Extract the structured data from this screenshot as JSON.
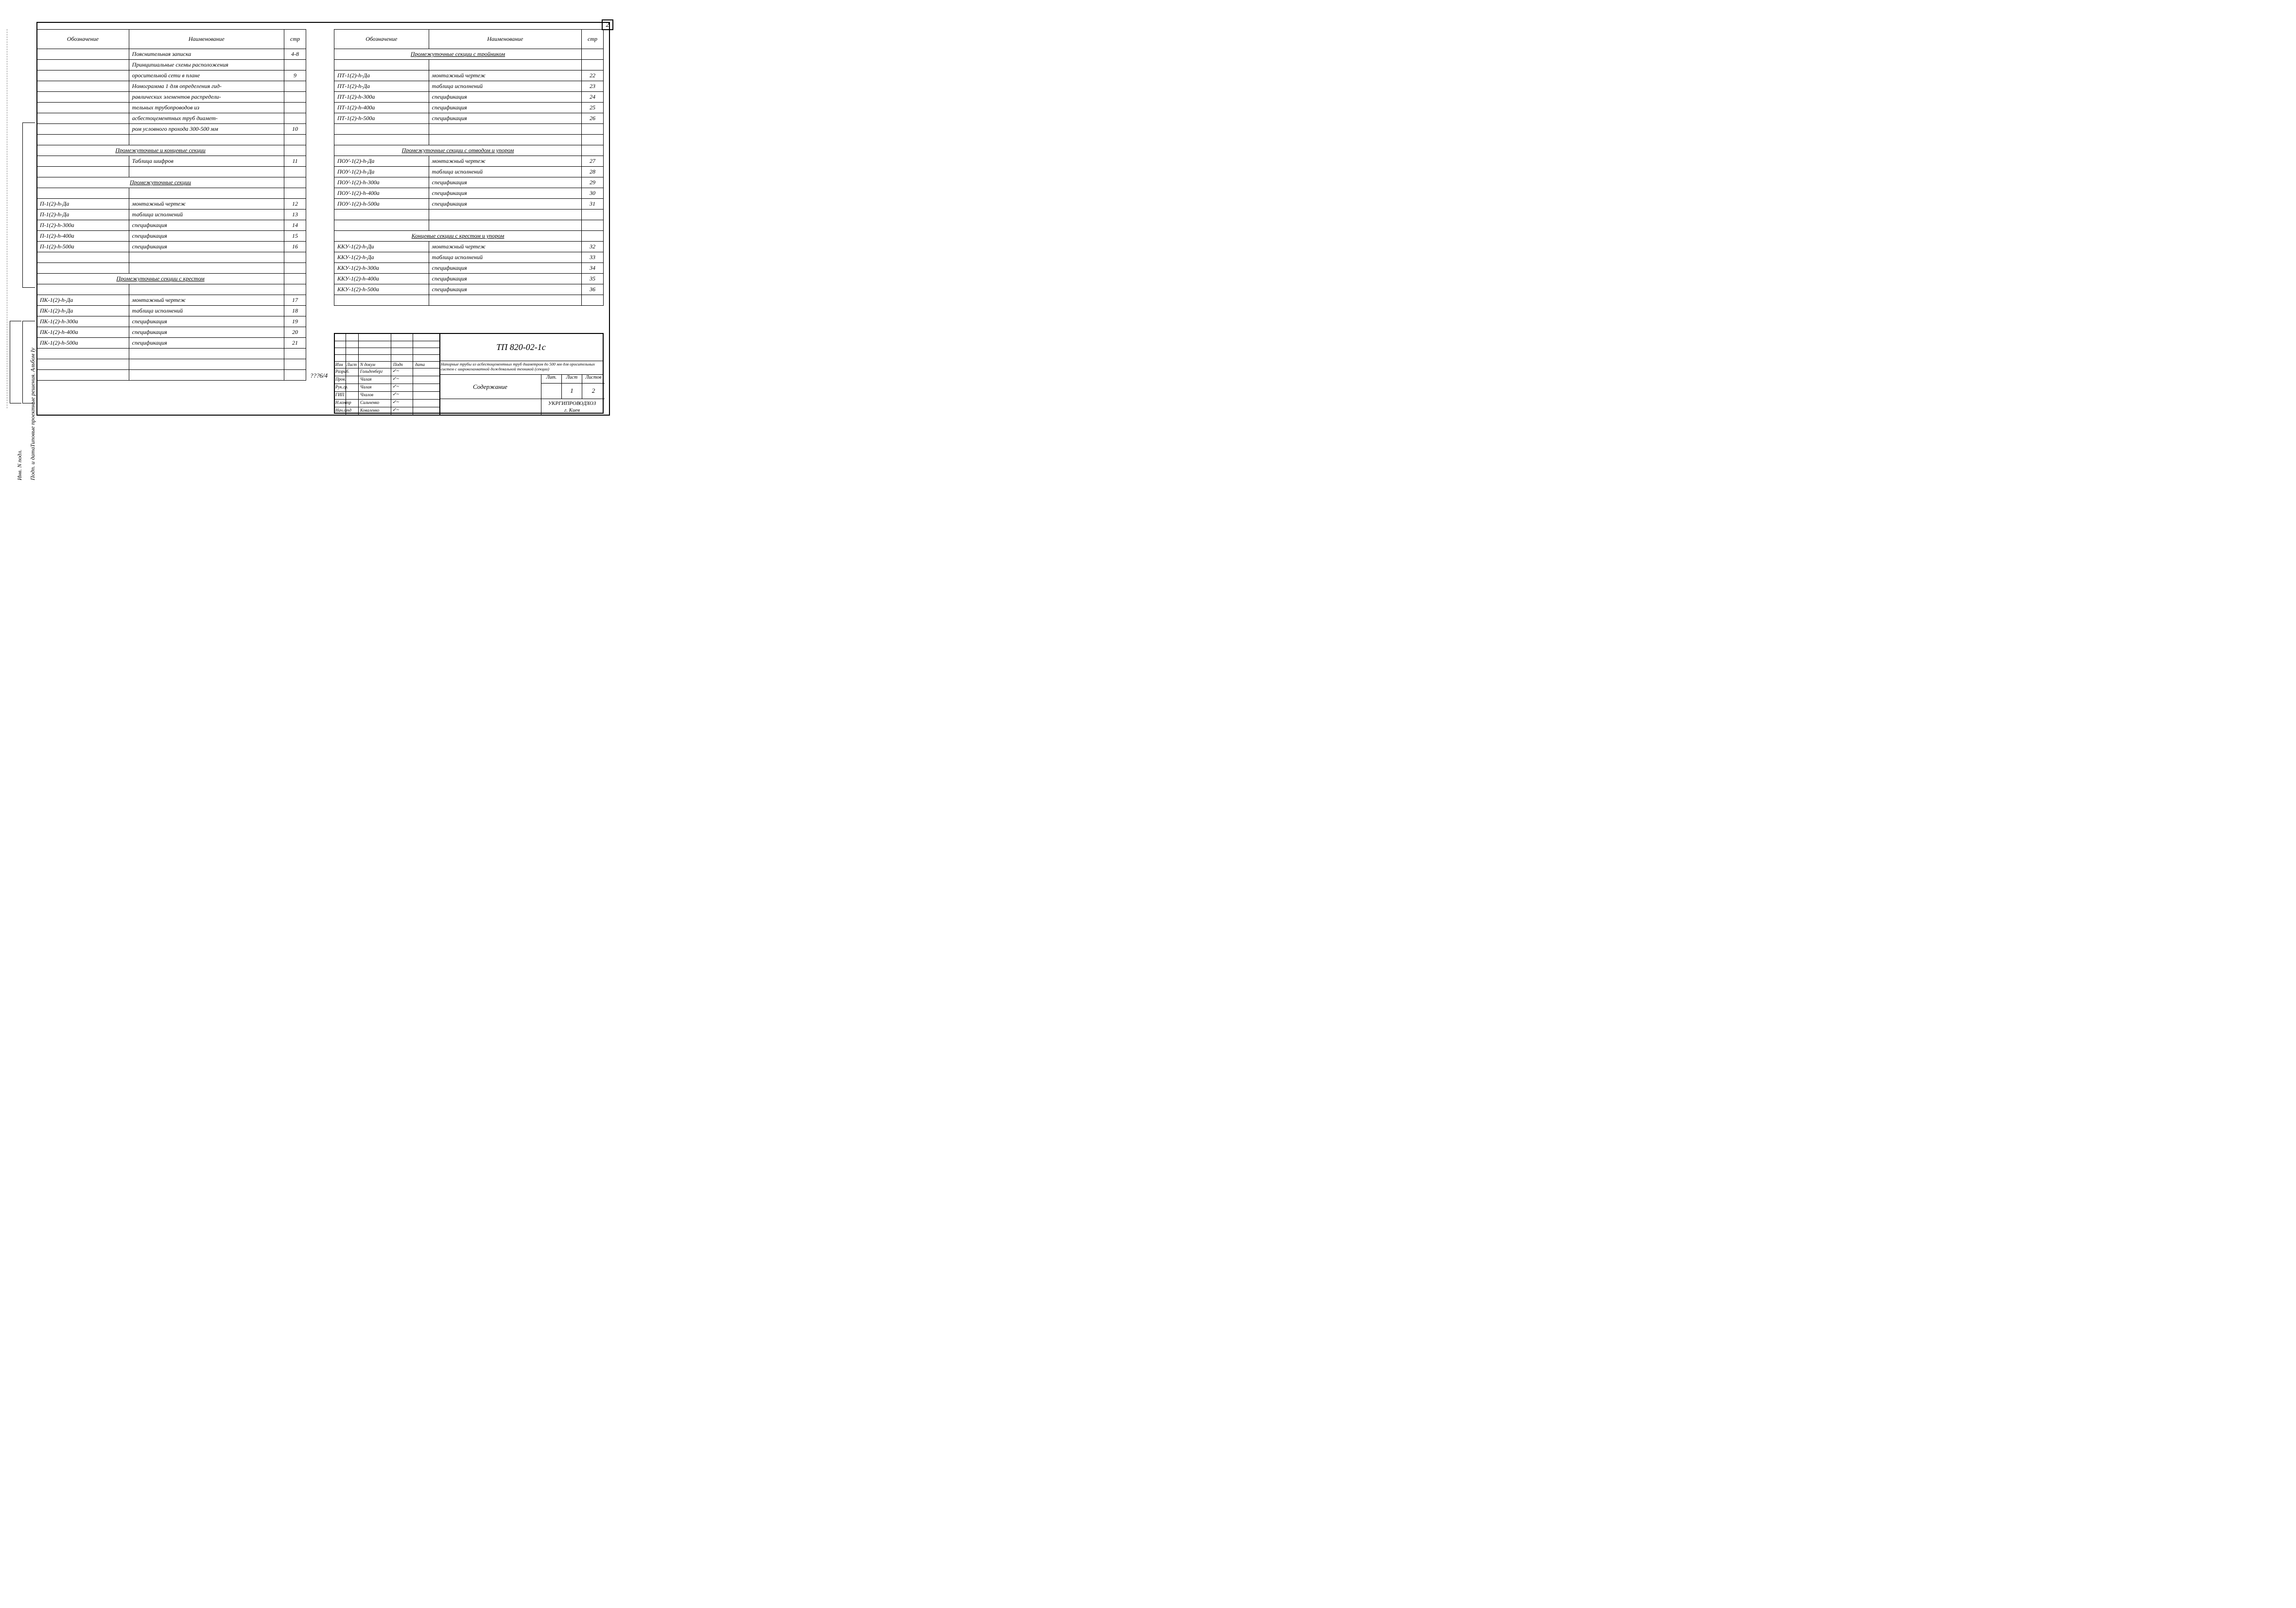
{
  "page_number_top": "2",
  "center_code": "???6/4",
  "vertical_labels": {
    "text1": "Типовые проектные решения. Альбом Iу",
    "text2": "Инв. N подл.",
    "text3": "Подп. и дата"
  },
  "headers": {
    "col1": "Обозначение",
    "col2": "Наименование",
    "col3": "стр"
  },
  "left_rows": [
    {
      "c1": "",
      "c2": "Пояснительная записка",
      "c3": "4-8"
    },
    {
      "c1": "",
      "c2": "Принципиальные схемы расположения",
      "c3": ""
    },
    {
      "c1": "",
      "c2": "оросительной сети в плане",
      "c3": "9"
    },
    {
      "c1": "",
      "c2": "Номограмма 1 для определения гид-",
      "c3": ""
    },
    {
      "c1": "",
      "c2": "равлических элементов распредели-",
      "c3": ""
    },
    {
      "c1": "",
      "c2": "тельных трубопроводов из",
      "c3": ""
    },
    {
      "c1": "",
      "c2": "асбестоцементных труб диамет-",
      "c3": ""
    },
    {
      "c1": "",
      "c2": "ром условного прохода 300-500 мм",
      "c3": "10"
    },
    {
      "c1": "",
      "c2": "",
      "c3": ""
    },
    {
      "section": true,
      "label": "Промежуточные и концевые секции"
    },
    {
      "c1": "",
      "c2": "Таблица шифров",
      "c3": "11"
    },
    {
      "c1": "",
      "c2": "",
      "c3": ""
    },
    {
      "section": true,
      "label": "Промежуточные секции"
    },
    {
      "c1": "",
      "c2": "",
      "c3": ""
    },
    {
      "c1": "П-1(2)-h-Да",
      "c2": "монтажный чертеж",
      "c3": "12"
    },
    {
      "c1": "П-1(2)-h-Да",
      "c2": "таблица исполнений",
      "c3": "13"
    },
    {
      "c1": "П-1(2)-h-300а",
      "c2": "спецификация",
      "c3": "14"
    },
    {
      "c1": "П-1(2)-h-400а",
      "c2": "спецификация",
      "c3": "15"
    },
    {
      "c1": "П-1(2)-h-500а",
      "c2": "спецификация",
      "c3": "16"
    },
    {
      "c1": "",
      "c2": "",
      "c3": ""
    },
    {
      "c1": "",
      "c2": "",
      "c3": ""
    },
    {
      "section": true,
      "label": "Промежуточные секции с крестом"
    },
    {
      "c1": "",
      "c2": "",
      "c3": ""
    },
    {
      "c1": "ПК-1(2)-h-Да",
      "c2": "монтажный чертеж",
      "c3": "17"
    },
    {
      "c1": "ПК-1(2)-h-Да",
      "c2": "таблица исполнений",
      "c3": "18"
    },
    {
      "c1": "ПК-1(2)-h-300а",
      "c2": "спецификация",
      "c3": "19"
    },
    {
      "c1": "ПК-1(2)-h-400а",
      "c2": "спецификация",
      "c3": "20"
    },
    {
      "c1": "ПК-1(2)-h-500а",
      "c2": "спецификация",
      "c3": "21"
    },
    {
      "c1": "",
      "c2": "",
      "c3": ""
    },
    {
      "c1": "",
      "c2": "",
      "c3": ""
    },
    {
      "c1": "",
      "c2": "",
      "c3": ""
    }
  ],
  "right_rows": [
    {
      "section": true,
      "label": "Промежуточные секции с тройником"
    },
    {
      "c1": "",
      "c2": "",
      "c3": ""
    },
    {
      "c1": "ПТ-1(2)-h-Да",
      "c2": "монтажный чертеж",
      "c3": "22"
    },
    {
      "c1": "ПТ-1(2)-h-Да",
      "c2": "таблица исполнений",
      "c3": "23"
    },
    {
      "c1": "ПТ-1(2)-h-300а",
      "c2": "спецификация",
      "c3": "24"
    },
    {
      "c1": "ПТ-1(2)-h-400а",
      "c2": "спецификация",
      "c3": "25"
    },
    {
      "c1": "ПТ-1(2)-h-500а",
      "c2": "спецификация",
      "c3": "26"
    },
    {
      "c1": "",
      "c2": "",
      "c3": ""
    },
    {
      "c1": "",
      "c2": "",
      "c3": ""
    },
    {
      "section": true,
      "label": "Промежуточные секции с отводом и упором"
    },
    {
      "c1": "ПОУ-1(2)-h-Да",
      "c2": "монтажный чертеж",
      "c3": "27"
    },
    {
      "c1": "ПОУ-1(2)-h-Да",
      "c2": "таблица исполнений",
      "c3": "28"
    },
    {
      "c1": "ПОУ-1(2)-h-300а",
      "c2": "спецификация",
      "c3": "29"
    },
    {
      "c1": "ПОУ-1(2)-h-400а",
      "c2": "спецификация",
      "c3": "30"
    },
    {
      "c1": "ПОУ-1(2)-h-500а",
      "c2": "спецификация",
      "c3": "31"
    },
    {
      "c1": "",
      "c2": "",
      "c3": ""
    },
    {
      "c1": "",
      "c2": "",
      "c3": ""
    },
    {
      "section": true,
      "label": "Концевые секции с крестом и упором"
    },
    {
      "c1": "ККУ-1(2)-h-Ди",
      "c2": "монтажный чертеж",
      "c3": "32"
    },
    {
      "c1": "ККУ-1(2)-h-Да",
      "c2": "таблица исполнений",
      "c3": "33"
    },
    {
      "c1": "ККУ-1(2)-h-300а",
      "c2": "спецификация",
      "c3": "34"
    },
    {
      "c1": "ККУ-1(2)-h-400а",
      "c2": "спецификация",
      "c3": "35"
    },
    {
      "c1": "ККУ-1(2)-h-500а",
      "c2": "спецификация",
      "c3": "36"
    },
    {
      "c1": "",
      "c2": "",
      "c3": ""
    }
  ],
  "title_block": {
    "doc_number": "ТП 820-02-1с",
    "description": "Напорные трубы из асбестоцементных труб диаметром до 500 мм для оросительных систем с широкозахватной дождевальной техникой (секции)",
    "content_label": "Содержание",
    "lit_label": "Лит.",
    "list_label": "Лист",
    "listov_label": "Листов",
    "list_value": "1",
    "listov_value": "2",
    "org_line1": "УКРГИПРОВОДХОЗ",
    "org_line2": "г. Киев",
    "sig_headers": {
      "izm": "Изм",
      "list": "Лист",
      "ndoc": "N докум",
      "podp": "Подп",
      "data": "дата"
    },
    "sig_rows": [
      {
        "role": "Разраб.",
        "name": "Гольденберг"
      },
      {
        "role": "Пров.",
        "name": "Чалая"
      },
      {
        "role": "Рук.гр.",
        "name": "Чалая"
      },
      {
        "role": "ГИП",
        "name": "Чхалов"
      },
      {
        "role": "Н.контр",
        "name": "Сильченко"
      },
      {
        "role": "Нач.отд",
        "name": "Коваленко"
      }
    ]
  }
}
